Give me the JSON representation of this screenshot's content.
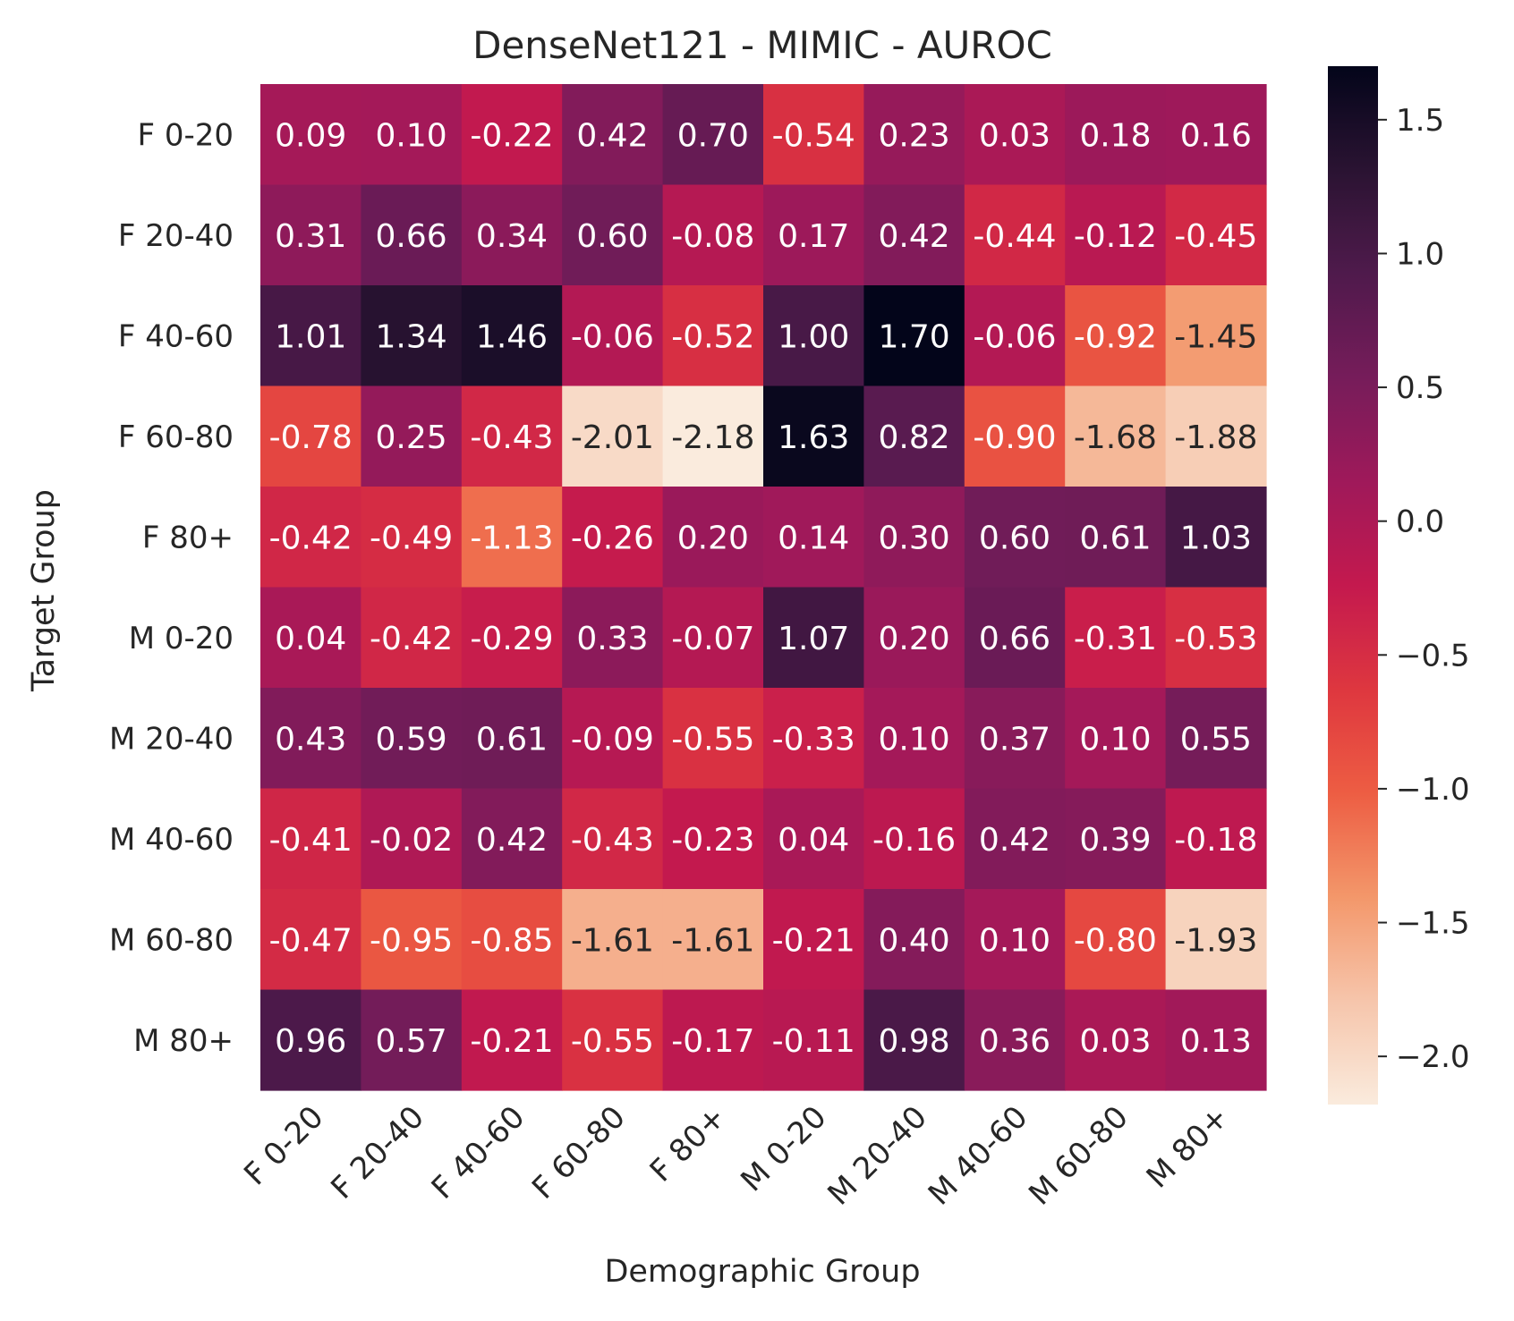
{
  "chart_data": {
    "type": "heatmap",
    "title": "DenseNet121 - MIMIC - AUROC",
    "xlabel": "Demographic Group",
    "ylabel": "Target Group",
    "x_categories": [
      "F 0-20",
      "F 20-40",
      "F 40-60",
      "F 60-80",
      "F 80+",
      "M 0-20",
      "M 20-40",
      "M 40-60",
      "M 60-80",
      "M 80+"
    ],
    "y_categories": [
      "F 0-20",
      "F 20-40",
      "F 40-60",
      "F 60-80",
      "F 80+",
      "M 0-20",
      "M 20-40",
      "M 40-60",
      "M 60-80",
      "M 80+"
    ],
    "values": [
      [
        0.09,
        0.1,
        -0.22,
        0.42,
        0.7,
        -0.54,
        0.23,
        0.03,
        0.18,
        0.16
      ],
      [
        0.31,
        0.66,
        0.34,
        0.6,
        -0.08,
        0.17,
        0.42,
        -0.44,
        -0.12,
        -0.45
      ],
      [
        1.01,
        1.34,
        1.46,
        -0.06,
        -0.52,
        1.0,
        1.7,
        -0.06,
        -0.92,
        -1.45
      ],
      [
        -0.78,
        0.25,
        -0.43,
        -2.01,
        -2.18,
        1.63,
        0.82,
        -0.9,
        -1.68,
        -1.88
      ],
      [
        -0.42,
        -0.49,
        -1.13,
        -0.26,
        0.2,
        0.14,
        0.3,
        0.6,
        0.61,
        1.03
      ],
      [
        0.04,
        -0.42,
        -0.29,
        0.33,
        -0.07,
        1.07,
        0.2,
        0.66,
        -0.31,
        -0.53
      ],
      [
        0.43,
        0.59,
        0.61,
        -0.09,
        -0.55,
        -0.33,
        0.1,
        0.37,
        0.1,
        0.55
      ],
      [
        -0.41,
        -0.02,
        0.42,
        -0.43,
        -0.23,
        0.04,
        -0.16,
        0.42,
        0.39,
        -0.18
      ],
      [
        -0.47,
        -0.95,
        -0.85,
        -1.61,
        -1.61,
        -0.21,
        0.4,
        0.1,
        -0.8,
        -1.93
      ],
      [
        0.96,
        0.57,
        -0.21,
        -0.55,
        -0.17,
        -0.11,
        0.98,
        0.36,
        0.03,
        0.13
      ]
    ],
    "colorbar": {
      "range": [
        -2.18,
        1.7
      ],
      "ticks": [
        -2.0,
        -1.5,
        -1.0,
        -0.5,
        0.0,
        0.5,
        1.0,
        1.5
      ],
      "tick_labels": [
        "−2.0",
        "−1.5",
        "−1.0",
        "−0.5",
        "0.0",
        "0.5",
        "1.0",
        "1.5"
      ],
      "colormap": "rocket_r"
    },
    "annotation_colors": {
      "light": "#ffffff",
      "dark": "#262626"
    }
  }
}
